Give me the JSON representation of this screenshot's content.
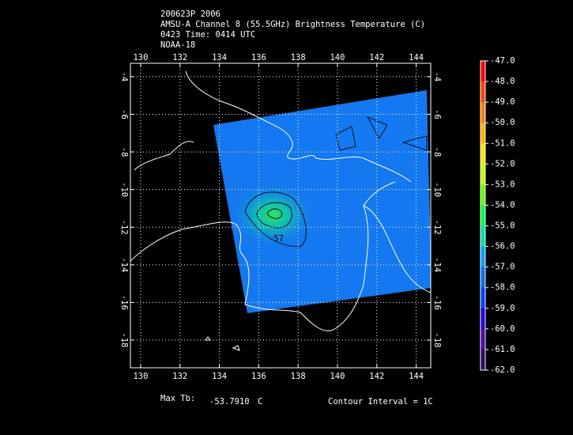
{
  "header": {
    "lines": [
      "200623P 2006",
      "AMSU-A Channel 8 (55.5GHz) Brightness Temperature (C)",
      "0423 Time: 0414 UTC",
      "NOAA-18"
    ]
  },
  "map": {
    "lon_range": [
      129.48,
      144.74
    ],
    "lat_range": [
      -3.29,
      -19.47
    ],
    "lon_ticks": [
      130,
      132,
      134,
      136,
      138,
      140,
      142,
      144
    ],
    "lat_ticks": [
      -4,
      -6,
      -8,
      -10,
      -12,
      -14,
      -16,
      -18
    ],
    "contour_label": "-57"
  },
  "colorbar": {
    "labels": [
      "-47.0",
      "-48.0",
      "-49.0",
      "-50.0",
      "-51.0",
      "-52.0",
      "-53.0",
      "-54.0",
      "-55.0",
      "-56.0",
      "-57.0",
      "-58.0",
      "-59.0",
      "-60.0",
      "-61.0",
      "-62.0"
    ],
    "colors": [
      "#ff0000",
      "#ff4000",
      "#ff8000",
      "#ffb000",
      "#ffe000",
      "#c0ff00",
      "#60ff00",
      "#00ff40",
      "#00e0a0",
      "#00a0ff",
      "#0070ff",
      "#0040ff",
      "#2000e0",
      "#5000b0",
      "#300060",
      "#000000"
    ]
  },
  "footer": {
    "max_label": "Max Tb:",
    "max_value": "-53.7910",
    "unit": "C",
    "contour": "Contour Interval = 1C"
  }
}
